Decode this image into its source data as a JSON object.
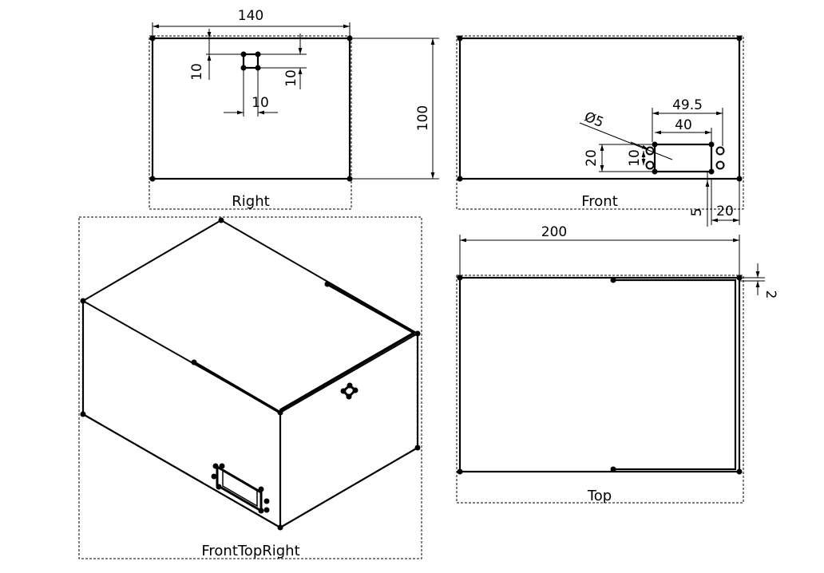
{
  "views": {
    "right": {
      "label": "Right",
      "dims": {
        "width": "140",
        "square_y": "10",
        "square_h": "10",
        "square_w": "10",
        "height": "100"
      }
    },
    "front": {
      "label": "Front",
      "dims": {
        "hole_dia": "Ø5",
        "d49": "49.5",
        "d40": "40",
        "d20": "20",
        "d10": "10",
        "d5": "5",
        "d20b": "20"
      }
    },
    "top": {
      "label": "Top",
      "dims": {
        "length": "200",
        "wall": "2"
      }
    },
    "iso": {
      "label": "FrontTopRight"
    }
  }
}
